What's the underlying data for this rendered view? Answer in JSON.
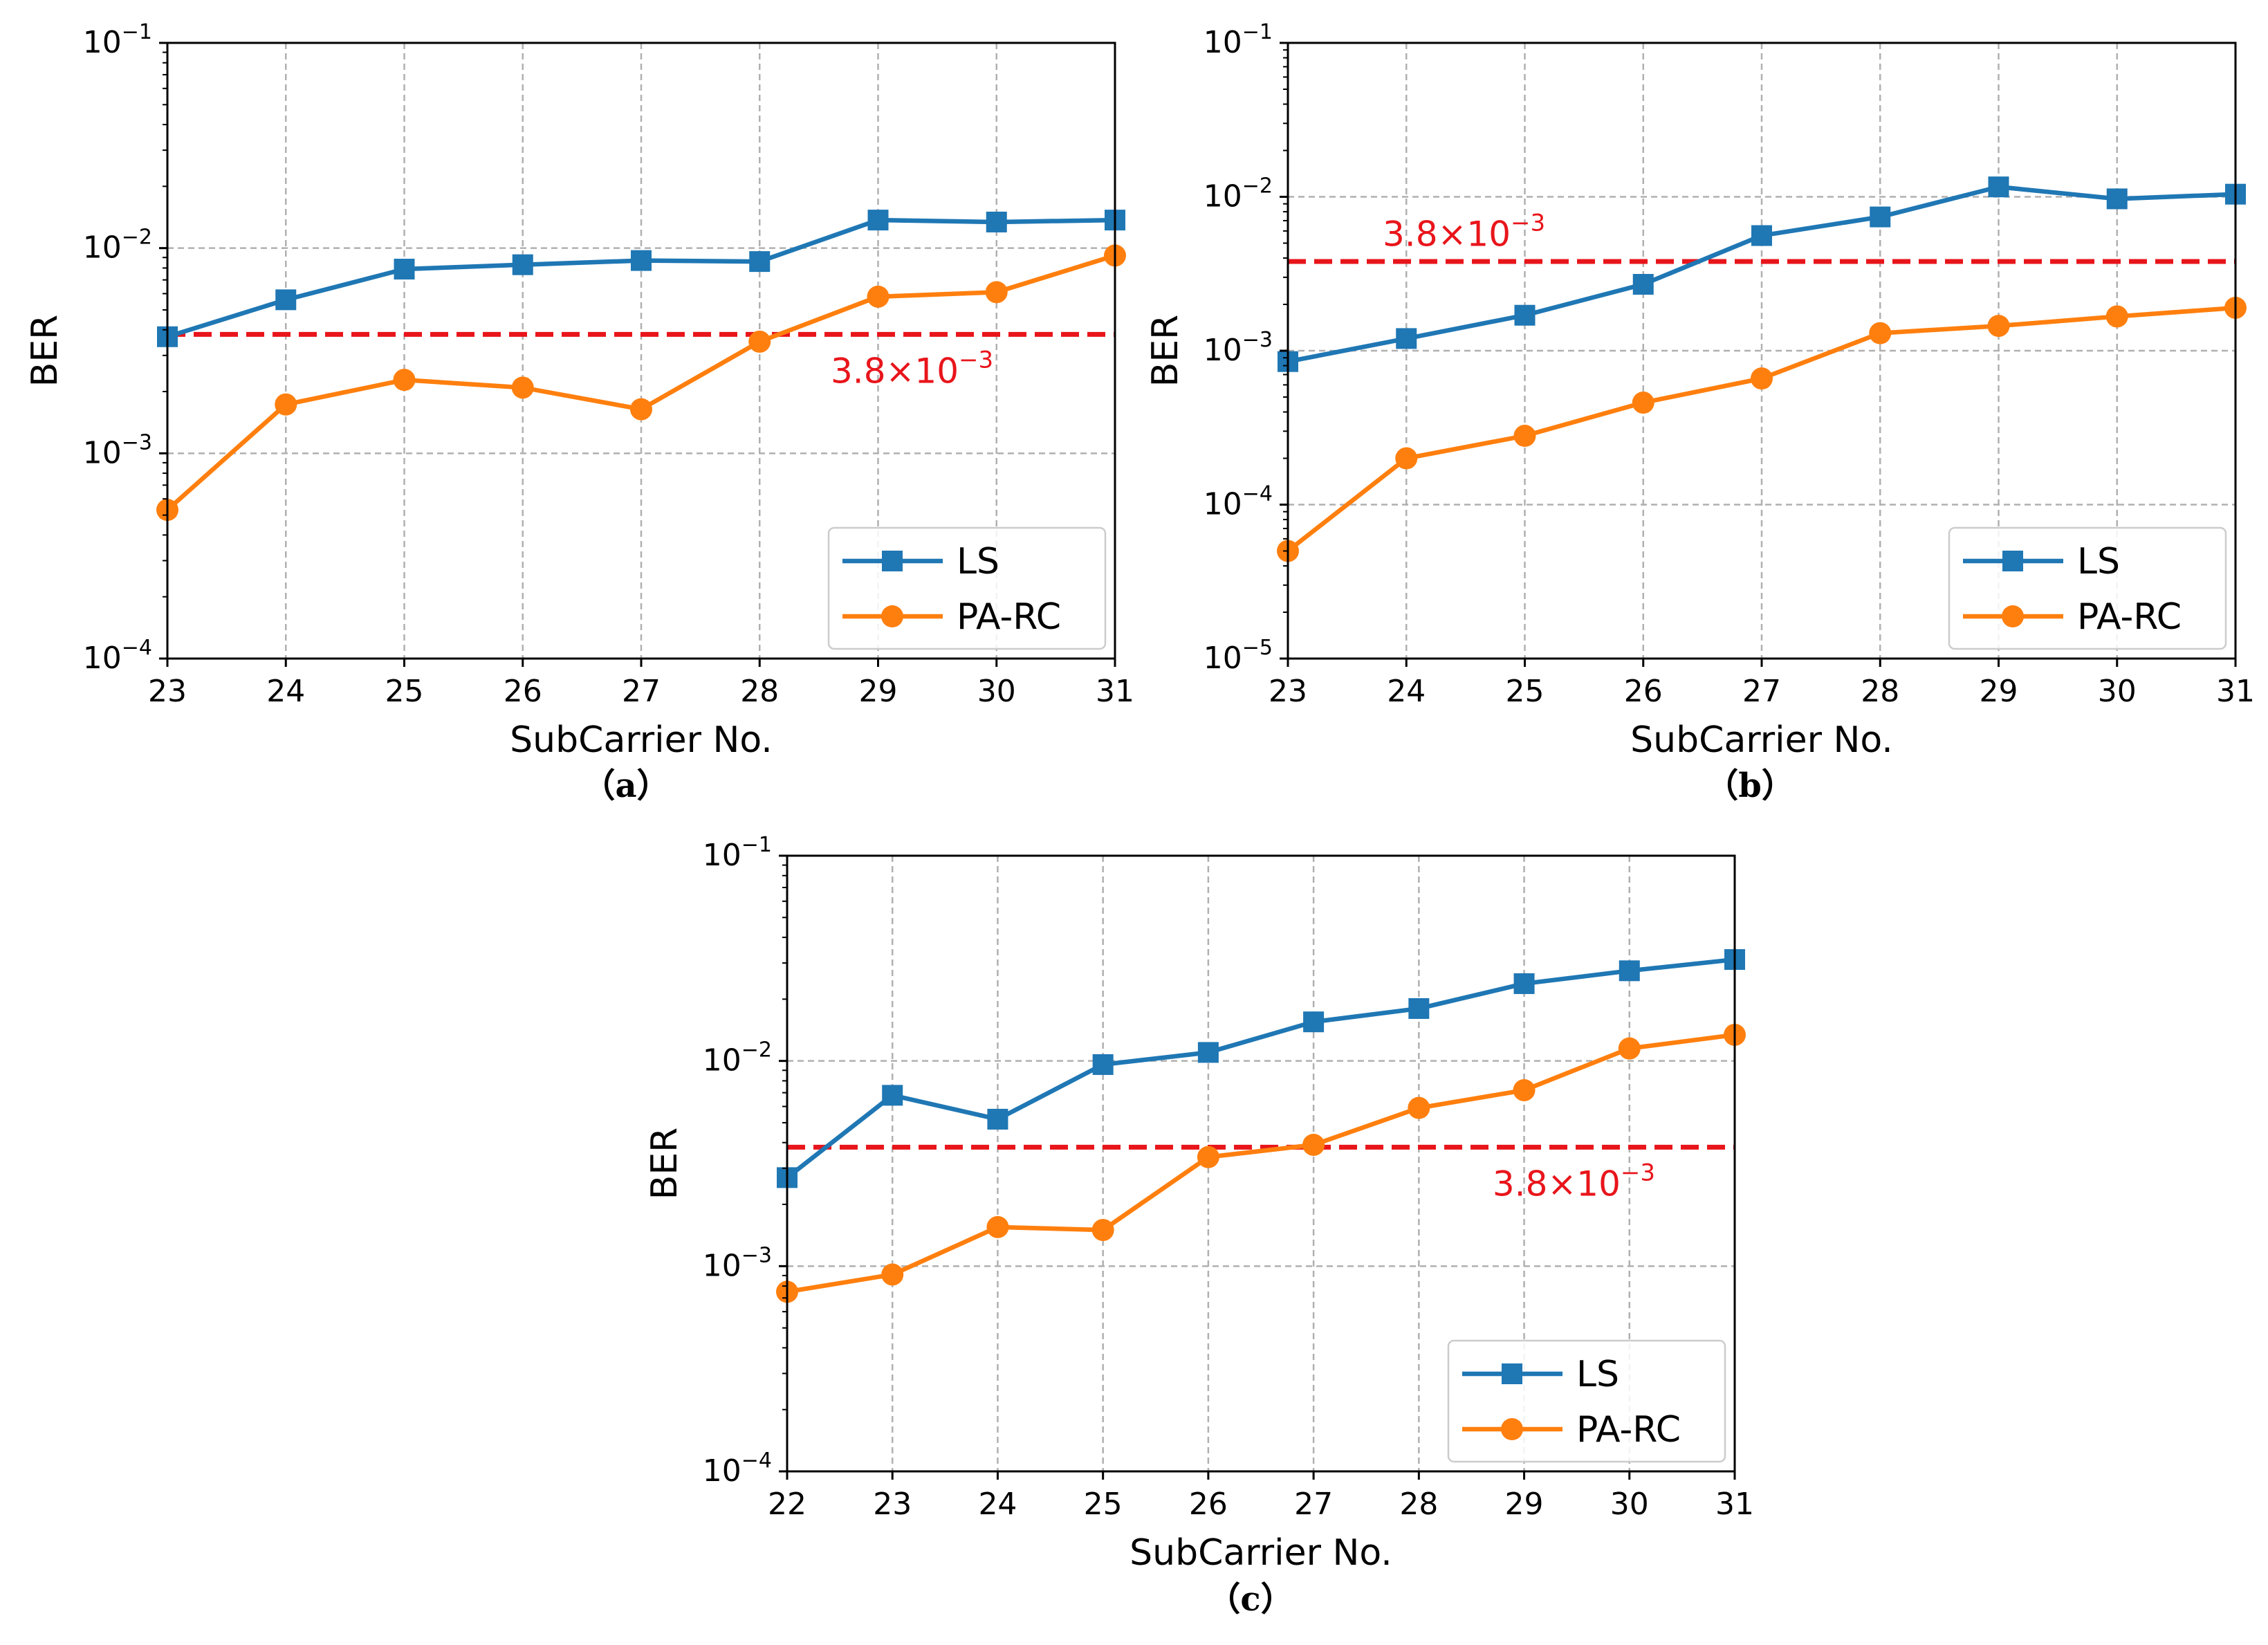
{
  "colors": {
    "ls": "#1f77b4",
    "parc": "#ff7f0e",
    "threshold": "#e8151b",
    "grid": "#b0b0b0",
    "axis": "#000000"
  },
  "chart_data": [
    {
      "type": "line",
      "caption": "（a）",
      "xlabel": "SubCarrier No.",
      "ylabel": "BER",
      "yscale": "log",
      "xlim": [
        23,
        31
      ],
      "ylim": [
        0.0001,
        0.1
      ],
      "grid": true,
      "legend_position": "bottom-right",
      "x": [
        23,
        24,
        25,
        26,
        27,
        28,
        29,
        30,
        31
      ],
      "xtick_labels": [
        "23",
        "24",
        "25",
        "26",
        "27",
        "28",
        "29",
        "30",
        "31"
      ],
      "ytick_labels": [
        {
          "base": "10",
          "exp": "−4"
        },
        {
          "base": "10",
          "exp": "−3"
        },
        {
          "base": "10",
          "exp": "−2"
        },
        {
          "base": "10",
          "exp": "−1"
        }
      ],
      "series": [
        {
          "name": "LS",
          "marker": "square",
          "values": [
            0.0037,
            0.0056,
            0.0079,
            0.0083,
            0.0087,
            0.0086,
            0.0137,
            0.0134,
            0.0137
          ]
        },
        {
          "name": "PA-RC",
          "marker": "circle",
          "values": [
            0.00053,
            0.00173,
            0.00228,
            0.00209,
            0.00164,
            0.0035,
            0.0058,
            0.0061,
            0.0092
          ]
        }
      ],
      "threshold": {
        "value": 0.0038,
        "label_base": "3.8×10",
        "label_exp": "−3",
        "label_anchor": {
          "x": 28.6,
          "y": 0.0022
        }
      }
    },
    {
      "type": "line",
      "caption": "（b）",
      "xlabel": "SubCarrier No.",
      "ylabel": "BER",
      "yscale": "log",
      "xlim": [
        23,
        31
      ],
      "ylim": [
        1e-05,
        0.1
      ],
      "grid": true,
      "legend_position": "bottom-right",
      "x": [
        23,
        24,
        25,
        26,
        27,
        28,
        29,
        30,
        31
      ],
      "xtick_labels": [
        "23",
        "24",
        "25",
        "26",
        "27",
        "28",
        "29",
        "30",
        "31"
      ],
      "ytick_labels": [
        {
          "base": "10",
          "exp": "−5"
        },
        {
          "base": "10",
          "exp": "−4"
        },
        {
          "base": "10",
          "exp": "−3"
        },
        {
          "base": "10",
          "exp": "−2"
        },
        {
          "base": "10",
          "exp": "−1"
        }
      ],
      "series": [
        {
          "name": "LS",
          "marker": "square",
          "values": [
            0.00085,
            0.0012,
            0.0017,
            0.0027,
            0.0056,
            0.0074,
            0.0116,
            0.0097,
            0.0104
          ]
        },
        {
          "name": "PA-RC",
          "marker": "circle",
          "values": [
            5e-05,
            0.0002,
            0.00028,
            0.00046,
            0.00066,
            0.0013,
            0.00145,
            0.00167,
            0.0019
          ]
        }
      ],
      "threshold": {
        "value": 0.0038,
        "label_base": "3.8×10",
        "label_exp": "−3",
        "label_anchor": {
          "x": 23.8,
          "y": 0.0048
        }
      }
    },
    {
      "type": "line",
      "caption": "（c）",
      "xlabel": "SubCarrier No.",
      "ylabel": "BER",
      "yscale": "log",
      "xlim": [
        22,
        31
      ],
      "ylim": [
        0.0001,
        0.1
      ],
      "grid": true,
      "legend_position": "bottom-right",
      "x": [
        22,
        23,
        24,
        25,
        26,
        27,
        28,
        29,
        30,
        31
      ],
      "xtick_labels": [
        "22",
        "23",
        "24",
        "25",
        "26",
        "27",
        "28",
        "29",
        "30",
        "31"
      ],
      "ytick_labels": [
        {
          "base": "10",
          "exp": "−4"
        },
        {
          "base": "10",
          "exp": "−3"
        },
        {
          "base": "10",
          "exp": "−2"
        },
        {
          "base": "10",
          "exp": "−1"
        }
      ],
      "series": [
        {
          "name": "LS",
          "marker": "square",
          "values": [
            0.0027,
            0.0068,
            0.0052,
            0.0096,
            0.011,
            0.0155,
            0.018,
            0.0238,
            0.0275,
            0.0312
          ]
        },
        {
          "name": "PA-RC",
          "marker": "circle",
          "values": [
            0.00075,
            0.00091,
            0.00155,
            0.0015,
            0.0034,
            0.0039,
            0.0059,
            0.0072,
            0.0115,
            0.0134
          ]
        }
      ],
      "threshold": {
        "value": 0.0038,
        "label_base": "3.8×10",
        "label_exp": "−3",
        "label_anchor": {
          "x": 28.7,
          "y": 0.0022
        }
      }
    }
  ]
}
